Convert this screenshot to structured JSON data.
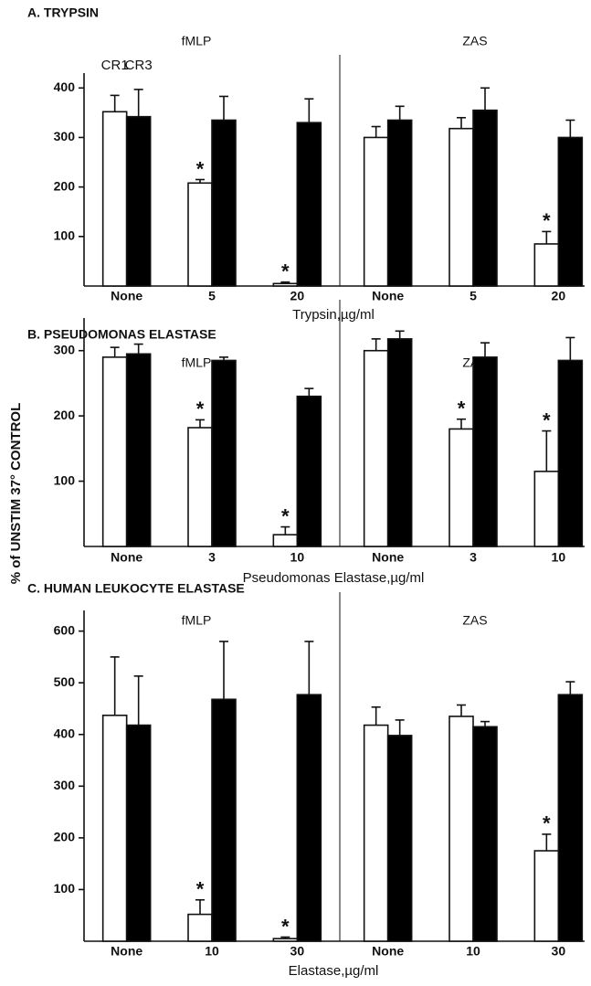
{
  "chart_data": [
    {
      "type": "bar",
      "title": "A. TRYPSIN",
      "groups": [
        "fMLP",
        "ZAS"
      ],
      "x_label": "Trypsin,µg/ml",
      "categories": [
        "None",
        "5",
        "20",
        "None",
        "5",
        "20"
      ],
      "ylim": [
        0,
        430
      ],
      "yticks": [
        100,
        200,
        300,
        400
      ],
      "series": [
        {
          "name": "CR1",
          "color": "#ffffff",
          "values": [
            352,
            208,
            5,
            300,
            318,
            85
          ],
          "errors": [
            33,
            7,
            3,
            22,
            22,
            25
          ],
          "markers": [
            null,
            "*",
            "*",
            null,
            null,
            "*"
          ]
        },
        {
          "name": "CR3",
          "color": "#000000",
          "values": [
            342,
            335,
            330,
            335,
            355,
            300
          ],
          "errors": [
            55,
            48,
            48,
            28,
            45,
            35
          ]
        }
      ]
    },
    {
      "type": "bar",
      "title": "B. PSEUDOMONAS ELASTASE",
      "groups": [
        "fMLP",
        "ZAS"
      ],
      "x_label": "Pseudomonas Elastase,µg/ml",
      "y_label": "% of UNSTIM 37° CONTROL",
      "categories": [
        "None",
        "3",
        "10",
        "None",
        "3",
        "10"
      ],
      "ylim": [
        0,
        350
      ],
      "yticks": [
        100,
        200,
        300
      ],
      "series": [
        {
          "color": "#ffffff",
          "values": [
            290,
            182,
            18,
            300,
            180,
            115
          ],
          "errors": [
            15,
            12,
            12,
            18,
            15,
            62
          ],
          "markers": [
            null,
            "*",
            "*",
            null,
            "*",
            "*"
          ]
        },
        {
          "color": "#000000",
          "values": [
            295,
            285,
            230,
            318,
            290,
            285
          ],
          "errors": [
            15,
            5,
            12,
            12,
            22,
            35
          ]
        }
      ]
    },
    {
      "type": "bar",
      "title": "C. HUMAN LEUKOCYTE ELASTASE",
      "groups": [
        "fMLP",
        "ZAS"
      ],
      "x_label": "Elastase,µg/ml",
      "categories": [
        "None",
        "10",
        "30",
        "None",
        "10",
        "30"
      ],
      "ylim": [
        0,
        640
      ],
      "yticks": [
        100,
        200,
        300,
        400,
        500,
        600
      ],
      "series": [
        {
          "color": "#ffffff",
          "values": [
            437,
            52,
            5,
            418,
            435,
            175
          ],
          "errors": [
            113,
            28,
            3,
            35,
            22,
            32
          ],
          "markers": [
            null,
            "*",
            "*",
            null,
            null,
            "*"
          ]
        },
        {
          "color": "#000000",
          "values": [
            418,
            468,
            477,
            398,
            415,
            477
          ],
          "errors": [
            95,
            112,
            103,
            30,
            10,
            25
          ]
        }
      ]
    }
  ]
}
